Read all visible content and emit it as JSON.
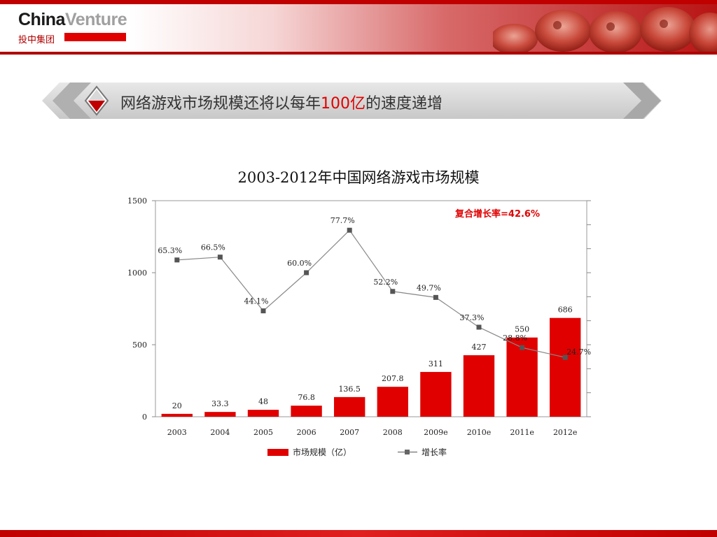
{
  "header": {
    "logo_part1": "China",
    "logo_part2": "Venture",
    "logo_sub": "投中集团"
  },
  "banner": {
    "title_prefix": "网络游戏市场规模还将以每年",
    "title_highlight": "100亿",
    "title_suffix": "的速度递增"
  },
  "colors": {
    "accent": "#e00000",
    "bar": "#e00000",
    "line": "#888888",
    "marker": "#555555"
  },
  "chart_data": {
    "type": "bar",
    "title": "2003-2012年中国网络游戏市场规模",
    "categories": [
      "2003",
      "2004",
      "2005",
      "2006",
      "2007",
      "2008",
      "2009e",
      "2010e",
      "2011e",
      "2012e"
    ],
    "series": [
      {
        "name": "市场规模（亿）",
        "type": "bar",
        "values": [
          20,
          33.3,
          48,
          76.8,
          136.5,
          207.8,
          311,
          427,
          550,
          686
        ],
        "labels": [
          "20",
          "33.3",
          "48",
          "76.8",
          "136.5",
          "207.8",
          "311",
          "427",
          "550",
          "686"
        ]
      },
      {
        "name": "增长率",
        "type": "line",
        "axis": "secondary",
        "values": [
          65.3,
          66.5,
          44.1,
          60.0,
          77.7,
          52.2,
          49.7,
          37.3,
          28.8,
          24.7
        ],
        "labels": [
          "65.3%",
          "66.5%",
          "44.1%",
          "60.0%",
          "77.7%",
          "52.2%",
          "49.7%",
          "37.3%",
          "28.8%",
          "24.7%"
        ]
      }
    ],
    "ylim": [
      0,
      1500
    ],
    "yticks": [
      "0",
      "500",
      "1000",
      "1500"
    ],
    "y2lim": [
      0,
      90
    ],
    "annotation": "复合增长率=42.6%",
    "legend_position": "bottom",
    "grid": false
  }
}
